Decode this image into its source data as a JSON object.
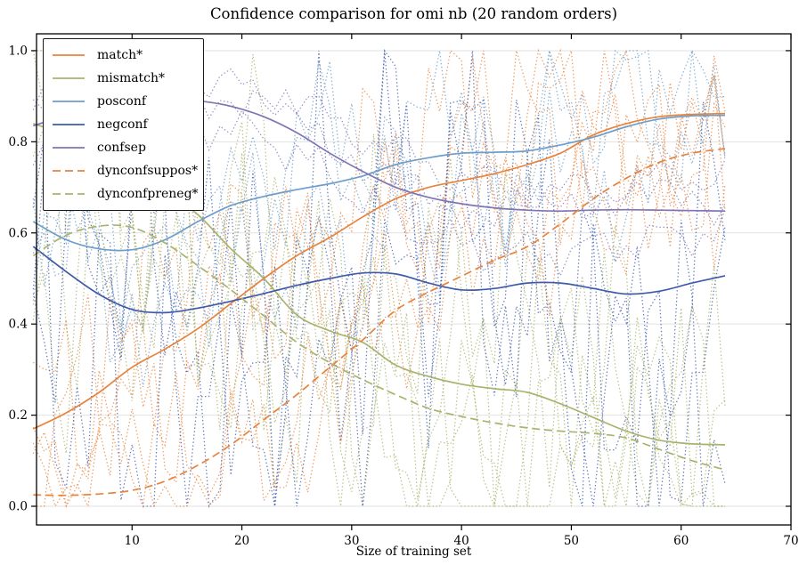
{
  "chart_data": {
    "type": "line",
    "title": "Confidence comparison for omi nb (20 random orders)",
    "xlabel": "Size of training set",
    "ylabel": "",
    "xlim": [
      1.3,
      70
    ],
    "ylim": [
      -0.041,
      1.037
    ],
    "x_ticks": [
      10,
      20,
      30,
      40,
      50,
      60,
      70
    ],
    "y_ticks": [
      "0.0",
      "0.2",
      "0.4",
      "0.6",
      "0.8",
      "1.0"
    ],
    "grid": "horizontal-only",
    "grid_color": "#e2e2e2",
    "spine_color": "#000000",
    "legend_position": "upper-left",
    "background_traces_note": "faint dotted polylines = 20 individual random-order runs per measure, oscillating noisily around each mean and clamped to [0,1]",
    "noise_seed": 11,
    "x": [
      1,
      4,
      7,
      10,
      13,
      16,
      19,
      22,
      25,
      28,
      31,
      34,
      37,
      40,
      43,
      46,
      49,
      52,
      55,
      58,
      61,
      64
    ],
    "series": [
      {
        "name": "match",
        "label": "match*",
        "color": "#e8833c",
        "style": "solid",
        "runs": 3,
        "noise_amp": 0.2,
        "values": [
          0.17,
          0.205,
          0.25,
          0.305,
          0.345,
          0.39,
          0.445,
          0.5,
          0.55,
          0.59,
          0.635,
          0.675,
          0.7,
          0.715,
          0.73,
          0.75,
          0.775,
          0.815,
          0.84,
          0.855,
          0.86,
          0.862
        ]
      },
      {
        "name": "mismatch",
        "label": "mismatch*",
        "color": "#a9b36c",
        "style": "solid",
        "runs": 3,
        "noise_amp": 0.26,
        "values": [
          0.84,
          0.815,
          0.785,
          0.73,
          0.69,
          0.64,
          0.565,
          0.5,
          0.42,
          0.385,
          0.36,
          0.31,
          0.285,
          0.268,
          0.258,
          0.25,
          0.225,
          0.195,
          0.165,
          0.145,
          0.137,
          0.135
        ]
      },
      {
        "name": "posconf",
        "label": "posconf",
        "color": "#6d9dcb",
        "style": "solid",
        "runs": 3,
        "noise_amp": 0.17,
        "values": [
          0.625,
          0.585,
          0.565,
          0.563,
          0.585,
          0.625,
          0.66,
          0.68,
          0.695,
          0.708,
          0.725,
          0.75,
          0.765,
          0.775,
          0.777,
          0.78,
          0.793,
          0.81,
          0.833,
          0.85,
          0.857,
          0.858
        ]
      },
      {
        "name": "negconf",
        "label": "negconf",
        "color": "#3e5ba9",
        "style": "solid",
        "runs": 3,
        "noise_amp": 0.33,
        "values": [
          0.57,
          0.515,
          0.465,
          0.432,
          0.425,
          0.435,
          0.45,
          0.467,
          0.485,
          0.5,
          0.512,
          0.51,
          0.49,
          0.475,
          0.478,
          0.49,
          0.49,
          0.478,
          0.466,
          0.472,
          0.49,
          0.506
        ]
      },
      {
        "name": "confsep",
        "label": "confsep",
        "color": "#8174b4",
        "style": "solid",
        "runs": 3,
        "noise_amp": 0.04,
        "run_offsets": [
          0.06,
          -0.07,
          0.012
        ],
        "values": [
          0.835,
          0.858,
          0.877,
          0.888,
          0.893,
          0.89,
          0.878,
          0.855,
          0.82,
          0.775,
          0.735,
          0.7,
          0.678,
          0.664,
          0.655,
          0.65,
          0.648,
          0.65,
          0.651,
          0.65,
          0.649,
          0.648
        ]
      },
      {
        "name": "dynconfsuppos",
        "label": "dynconfsuppos*",
        "color": "#e8833c",
        "style": "dashed",
        "runs": 2,
        "noise_amp": 0.15,
        "values": [
          0.025,
          0.024,
          0.027,
          0.035,
          0.055,
          0.09,
          0.135,
          0.19,
          0.245,
          0.305,
          0.365,
          0.43,
          0.47,
          0.505,
          0.54,
          0.57,
          0.62,
          0.675,
          0.72,
          0.755,
          0.775,
          0.785
        ]
      },
      {
        "name": "dynconfpreneg",
        "label": "dynconfpreneg*",
        "color": "#a9b36c",
        "style": "dashed",
        "runs": 2,
        "noise_amp": 0.24,
        "values": [
          0.55,
          0.595,
          0.615,
          0.612,
          0.578,
          0.528,
          0.475,
          0.418,
          0.36,
          0.315,
          0.278,
          0.245,
          0.215,
          0.197,
          0.183,
          0.172,
          0.165,
          0.16,
          0.15,
          0.125,
          0.1,
          0.08
        ]
      }
    ]
  }
}
